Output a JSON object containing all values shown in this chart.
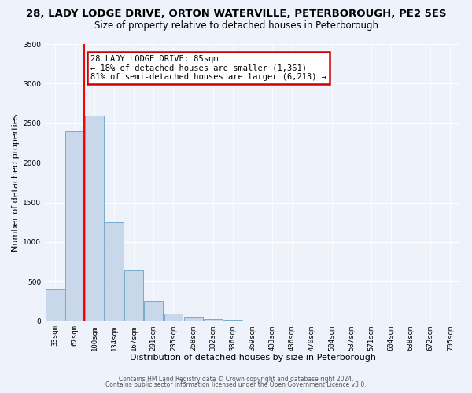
{
  "title_line1": "28, LADY LODGE DRIVE, ORTON WATERVILLE, PETERBOROUGH, PE2 5ES",
  "title_line2": "Size of property relative to detached houses in Peterborough",
  "xlabel": "Distribution of detached houses by size in Peterborough",
  "ylabel": "Number of detached properties",
  "categories": [
    "33sqm",
    "67sqm",
    "100sqm",
    "134sqm",
    "167sqm",
    "201sqm",
    "235sqm",
    "268sqm",
    "302sqm",
    "336sqm",
    "369sqm",
    "403sqm",
    "436sqm",
    "470sqm",
    "504sqm",
    "537sqm",
    "571sqm",
    "604sqm",
    "638sqm",
    "672sqm",
    "705sqm"
  ],
  "values": [
    400,
    2400,
    2600,
    1250,
    640,
    260,
    100,
    55,
    30,
    15,
    0,
    0,
    0,
    0,
    0,
    0,
    0,
    0,
    0,
    0,
    0
  ],
  "bar_color": "#c8d8ea",
  "bar_edge_color": "#7aabcc",
  "annotation_text": "28 LADY LODGE DRIVE: 85sqm\n← 18% of detached houses are smaller (1,361)\n81% of semi-detached houses are larger (6,213) →",
  "annotation_box_color": "#ffffff",
  "annotation_box_edge": "#cc0000",
  "red_line_index": 1.5,
  "ylim": [
    0,
    3500
  ],
  "yticks": [
    0,
    500,
    1000,
    1500,
    2000,
    2500,
    3000,
    3500
  ],
  "bg_color": "#eef2fb",
  "footer_line1": "Contains HM Land Registry data © Crown copyright and database right 2024.",
  "footer_line2": "Contains public sector information licensed under the Open Government Licence v3.0.",
  "title_fontsize": 9.5,
  "subtitle_fontsize": 8.5,
  "axis_label_fontsize": 8,
  "tick_fontsize": 6.5,
  "annot_fontsize": 7.5
}
